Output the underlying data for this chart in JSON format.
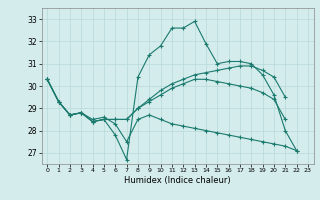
{
  "title": "",
  "xlabel": "Humidex (Indice chaleur)",
  "bg_color": "#d4ecec",
  "grid_color": "#b8d8d8",
  "line_color": "#1a7a6e",
  "ylim": [
    26.5,
    33.5
  ],
  "xlim": [
    -0.5,
    23.5
  ],
  "yticks": [
    27,
    28,
    29,
    30,
    31,
    32,
    33
  ],
  "xticks": [
    0,
    1,
    2,
    3,
    4,
    5,
    6,
    7,
    8,
    9,
    10,
    11,
    12,
    13,
    14,
    15,
    16,
    17,
    18,
    19,
    20,
    21,
    22,
    23
  ],
  "series": [
    [
      30.3,
      29.3,
      28.7,
      28.8,
      28.4,
      28.5,
      27.8,
      26.7,
      30.4,
      31.4,
      31.8,
      32.6,
      32.6,
      32.9,
      31.9,
      31.0,
      31.1,
      31.1,
      31.0,
      30.5,
      29.6,
      28.0,
      27.1,
      null
    ],
    [
      30.3,
      29.3,
      28.7,
      28.8,
      28.4,
      28.5,
      28.5,
      28.5,
      29.0,
      29.4,
      29.8,
      30.1,
      30.3,
      30.5,
      30.6,
      30.7,
      30.8,
      30.9,
      30.9,
      30.7,
      30.4,
      29.5,
      null,
      null
    ],
    [
      30.3,
      29.3,
      28.7,
      28.8,
      28.4,
      28.5,
      28.5,
      28.5,
      29.0,
      29.3,
      29.6,
      29.9,
      30.1,
      30.3,
      30.3,
      30.2,
      30.1,
      30.0,
      29.9,
      29.7,
      29.4,
      28.5,
      null,
      null
    ],
    [
      30.3,
      29.3,
      28.7,
      28.8,
      28.5,
      28.6,
      28.3,
      27.5,
      28.5,
      28.7,
      28.5,
      28.3,
      28.2,
      28.1,
      28.0,
      27.9,
      27.8,
      27.7,
      27.6,
      27.5,
      27.4,
      27.3,
      27.1,
      null
    ]
  ]
}
